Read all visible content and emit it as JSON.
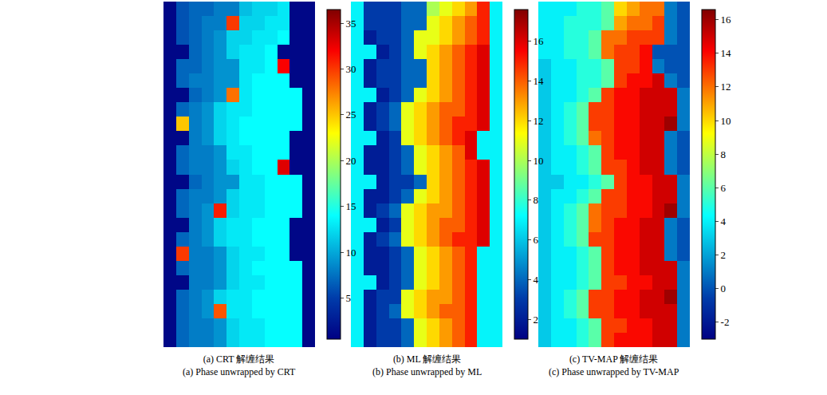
{
  "chart_data": [
    {
      "type": "heatmap",
      "title": "(a) CRT 解缠结果",
      "subtitle": "(a) Phase unwrapped by CRT",
      "color": "jet",
      "tick_labels": false,
      "zlim": [
        0.5,
        36.5
      ],
      "zticks": [
        5,
        10,
        15,
        20,
        25,
        30,
        35
      ],
      "z": [
        [
          1,
          6,
          7,
          7,
          8,
          8,
          11,
          12,
          12,
          13,
          1,
          1
        ],
        [
          1,
          6,
          7,
          8,
          8,
          30,
          12,
          12,
          13,
          13,
          1,
          1
        ],
        [
          1,
          6,
          7,
          8,
          9,
          12,
          12,
          13,
          13,
          14,
          1,
          1
        ],
        [
          1,
          1,
          7,
          8,
          9,
          12,
          13,
          13,
          14,
          1,
          1,
          1
        ],
        [
          1,
          7,
          7,
          8,
          9,
          9,
          13,
          13,
          14,
          32,
          1,
          1
        ],
        [
          1,
          7,
          8,
          8,
          9,
          9,
          13,
          14,
          14,
          14,
          1,
          1
        ],
        [
          1,
          1,
          7,
          8,
          9,
          28,
          13,
          14,
          14,
          14,
          14,
          1
        ],
        [
          1,
          7,
          8,
          9,
          12,
          13,
          13,
          14,
          14,
          14,
          14,
          1
        ],
        [
          1,
          25,
          8,
          9,
          12,
          13,
          14,
          14,
          14,
          14,
          14,
          1
        ],
        [
          1,
          1,
          8,
          9,
          12,
          13,
          14,
          14,
          14,
          14,
          1,
          1
        ],
        [
          1,
          7,
          8,
          8,
          9,
          13,
          13,
          14,
          14,
          14,
          1,
          1
        ],
        [
          1,
          7,
          8,
          8,
          9,
          12,
          13,
          14,
          14,
          33,
          1,
          1
        ],
        [
          1,
          1,
          7,
          8,
          9,
          9,
          13,
          13,
          14,
          14,
          14,
          1
        ],
        [
          1,
          7,
          8,
          8,
          9,
          12,
          13,
          13,
          14,
          14,
          14,
          1
        ],
        [
          1,
          7,
          8,
          9,
          31,
          12,
          13,
          13,
          14,
          14,
          14,
          1
        ],
        [
          1,
          1,
          8,
          9,
          12,
          13,
          13,
          14,
          14,
          14,
          1,
          1
        ],
        [
          1,
          7,
          8,
          9,
          12,
          13,
          13,
          14,
          14,
          14,
          1,
          1
        ],
        [
          1,
          30,
          8,
          8,
          9,
          12,
          13,
          13,
          14,
          14,
          1,
          1
        ],
        [
          1,
          7,
          8,
          8,
          9,
          12,
          13,
          14,
          14,
          14,
          14,
          1
        ],
        [
          1,
          1,
          8,
          8,
          9,
          12,
          13,
          13,
          14,
          14,
          14,
          1
        ],
        [
          1,
          7,
          8,
          9,
          12,
          13,
          13,
          14,
          14,
          14,
          14,
          1
        ],
        [
          1,
          7,
          8,
          9,
          29,
          13,
          13,
          14,
          14,
          14,
          14,
          1
        ],
        [
          1,
          7,
          8,
          8,
          9,
          12,
          13,
          13,
          14,
          14,
          14,
          1
        ],
        [
          1,
          7,
          8,
          8,
          9,
          12,
          13,
          13,
          14,
          14,
          14,
          1
        ]
      ]
    },
    {
      "type": "heatmap",
      "title": "(b) ML 解缠结果",
      "subtitle": "(b) Phase unwrapped by ML",
      "color": "jet",
      "tick_labels": false,
      "zlim": [
        1,
        17.6
      ],
      "zticks": [
        2,
        4,
        6,
        8,
        10,
        12,
        14,
        16
      ],
      "z": [
        [
          7,
          3,
          3,
          3,
          4,
          4,
          10,
          11,
          12,
          13,
          15,
          7
        ],
        [
          7,
          3,
          3,
          3,
          4,
          4,
          11,
          12,
          13,
          14,
          15,
          7
        ],
        [
          7,
          2,
          3,
          3,
          4,
          11,
          11,
          12,
          13,
          14,
          15,
          7
        ],
        [
          7,
          7,
          2,
          3,
          4,
          11,
          12,
          13,
          14,
          15,
          16,
          7
        ],
        [
          7,
          2,
          3,
          3,
          4,
          4,
          12,
          13,
          14,
          15,
          16,
          7
        ],
        [
          7,
          2,
          3,
          3,
          4,
          4,
          12,
          13,
          14,
          15,
          16,
          7
        ],
        [
          7,
          7,
          2,
          3,
          4,
          11,
          12,
          13,
          14,
          15,
          16,
          7
        ],
        [
          7,
          2,
          3,
          4,
          11,
          12,
          13,
          14,
          14,
          15,
          16,
          7
        ],
        [
          7,
          2,
          3,
          4,
          11,
          12,
          13,
          14,
          15,
          15,
          16,
          7
        ],
        [
          7,
          7,
          2,
          3,
          11,
          12,
          13,
          14,
          15,
          16,
          7,
          7
        ],
        [
          7,
          2,
          2,
          3,
          4,
          11,
          12,
          13,
          14,
          16,
          7,
          7
        ],
        [
          7,
          2,
          2,
          3,
          4,
          11,
          12,
          13,
          14,
          15,
          16,
          7
        ],
        [
          7,
          7,
          2,
          3,
          3,
          4,
          12,
          13,
          14,
          15,
          16,
          7
        ],
        [
          7,
          2,
          2,
          3,
          4,
          11,
          12,
          13,
          14,
          15,
          16,
          7
        ],
        [
          7,
          2,
          3,
          4,
          11,
          12,
          13,
          13,
          14,
          15,
          16,
          7
        ],
        [
          7,
          7,
          2,
          3,
          11,
          12,
          13,
          14,
          14,
          15,
          16,
          7
        ],
        [
          7,
          2,
          3,
          4,
          11,
          12,
          13,
          14,
          15,
          15,
          16,
          7
        ],
        [
          7,
          2,
          2,
          3,
          4,
          11,
          12,
          13,
          14,
          15,
          7,
          7
        ],
        [
          7,
          2,
          2,
          3,
          4,
          11,
          12,
          13,
          14,
          15,
          7,
          7
        ],
        [
          7,
          7,
          2,
          3,
          4,
          11,
          12,
          13,
          14,
          15,
          7,
          7
        ],
        [
          7,
          2,
          3,
          3,
          11,
          12,
          13,
          13,
          14,
          15,
          7,
          7
        ],
        [
          7,
          2,
          3,
          4,
          11,
          12,
          13,
          14,
          14,
          15,
          7,
          7
        ],
        [
          7,
          2,
          3,
          3,
          4,
          11,
          12,
          13,
          14,
          15,
          7,
          7
        ],
        [
          7,
          2,
          3,
          3,
          4,
          11,
          12,
          13,
          14,
          15,
          7,
          7
        ]
      ]
    },
    {
      "type": "heatmap",
      "title": "(c) TV-MAP 解缠结果",
      "subtitle": "(c) Phase unwrapped by TV-MAP",
      "color": "jet",
      "tick_labels": false,
      "zlim": [
        -3,
        16.6
      ],
      "zticks": [
        -2,
        0,
        2,
        4,
        6,
        8,
        10,
        12,
        14,
        16
      ],
      "z": [
        [
          4,
          4,
          4,
          5,
          5,
          6,
          10,
          11,
          12,
          12,
          1,
          0
        ],
        [
          4,
          4,
          5,
          5,
          5,
          6,
          11,
          12,
          12,
          13,
          1,
          0
        ],
        [
          4,
          4,
          5,
          5,
          6,
          12,
          12,
          13,
          13,
          13,
          1,
          0
        ],
        [
          4,
          4,
          5,
          5,
          6,
          12,
          13,
          13,
          14,
          0,
          0,
          0
        ],
        [
          3,
          4,
          4,
          5,
          5,
          6,
          13,
          13,
          14,
          1,
          0,
          0
        ],
        [
          3,
          4,
          4,
          5,
          5,
          6,
          13,
          14,
          14,
          15,
          1,
          0
        ],
        [
          3,
          4,
          4,
          5,
          6,
          13,
          14,
          14,
          15,
          15,
          15,
          1
        ],
        [
          3,
          4,
          5,
          6,
          13,
          13,
          14,
          14,
          15,
          15,
          15,
          1
        ],
        [
          3,
          4,
          5,
          6,
          13,
          13,
          14,
          14,
          15,
          15,
          16,
          1
        ],
        [
          3,
          4,
          5,
          6,
          12,
          13,
          14,
          14,
          15,
          15,
          1,
          0
        ],
        [
          3,
          4,
          4,
          5,
          6,
          13,
          14,
          14,
          15,
          15,
          1,
          0
        ],
        [
          3,
          4,
          4,
          5,
          6,
          13,
          13,
          14,
          15,
          15,
          1,
          0
        ],
        [
          3,
          3,
          4,
          4,
          5,
          6,
          13,
          14,
          14,
          15,
          15,
          1
        ],
        [
          3,
          4,
          4,
          5,
          6,
          13,
          13,
          14,
          14,
          15,
          15,
          1
        ],
        [
          3,
          4,
          5,
          6,
          12,
          13,
          13,
          14,
          14,
          15,
          16,
          1
        ],
        [
          3,
          4,
          5,
          6,
          12,
          13,
          14,
          14,
          15,
          15,
          1,
          0
        ],
        [
          3,
          4,
          5,
          6,
          13,
          13,
          14,
          14,
          15,
          15,
          1,
          0
        ],
        [
          3,
          4,
          4,
          5,
          6,
          13,
          14,
          14,
          15,
          15,
          1,
          0
        ],
        [
          3,
          4,
          4,
          5,
          6,
          13,
          14,
          14,
          15,
          15,
          15,
          1
        ],
        [
          3,
          4,
          4,
          5,
          6,
          13,
          13,
          14,
          14,
          15,
          15,
          1
        ],
        [
          3,
          4,
          5,
          6,
          13,
          13,
          14,
          14,
          15,
          15,
          16,
          1
        ],
        [
          3,
          4,
          5,
          6,
          13,
          13,
          14,
          14,
          15,
          15,
          15,
          1
        ],
        [
          3,
          4,
          4,
          5,
          6,
          13,
          13,
          14,
          14,
          15,
          15,
          1
        ],
        [
          3,
          4,
          4,
          5,
          6,
          13,
          14,
          14,
          14,
          15,
          15,
          1
        ]
      ]
    }
  ]
}
